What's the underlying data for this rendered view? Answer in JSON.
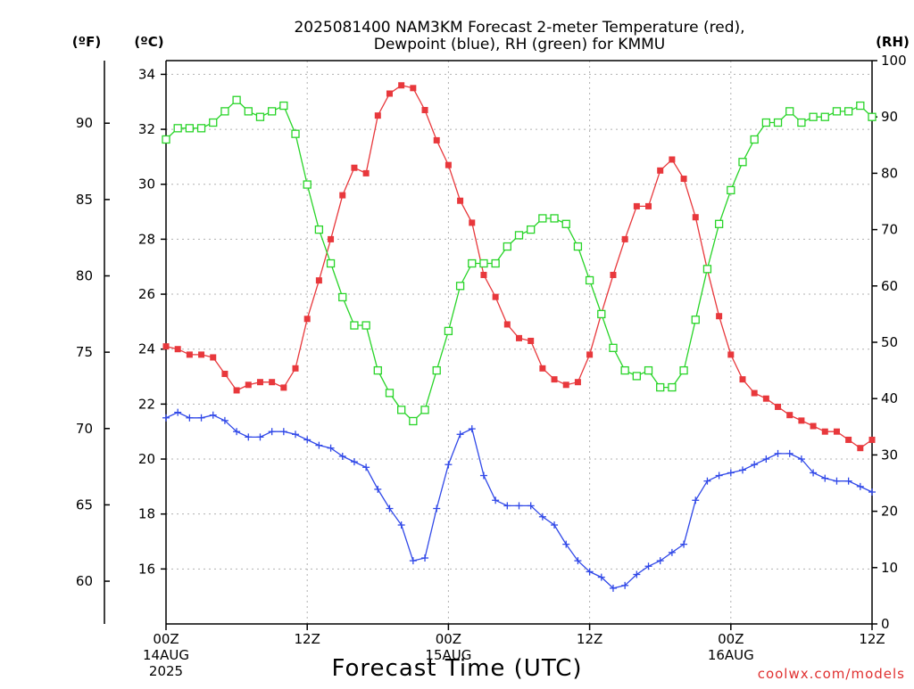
{
  "chart_data": {
    "type": "line",
    "title_lines": [
      "2025081400 NAM3KM Forecast 2-meter Temperature (red),",
      "Dewpoint (blue), RH (green) for KMMU"
    ],
    "xlabel": "Forecast Time (UTC)",
    "credit": "coolwx.com/models",
    "units": {
      "fahrenheit": "(ºF)",
      "celsius": "(ºC)",
      "rh": "(RH)"
    },
    "x_range_hours": [
      0,
      60
    ],
    "y_celsius_range": [
      14,
      34.5
    ],
    "y_rh_range": [
      0,
      100
    ],
    "celsius_ticks": [
      "16",
      "18",
      "20",
      "22",
      "24",
      "26",
      "28",
      "30",
      "32",
      "34"
    ],
    "fahrenheit_ticks": [
      "60",
      "65",
      "70",
      "75",
      "80",
      "85",
      "90"
    ],
    "rh_ticks": [
      "0",
      "10",
      "20",
      "30",
      "40",
      "50",
      "60",
      "70",
      "80",
      "90",
      "100"
    ],
    "x_ticks": [
      {
        "hour": 0,
        "label": "00Z",
        "date": "14AUG",
        "year": "2025"
      },
      {
        "hour": 12,
        "label": "12Z",
        "date": "",
        "year": ""
      },
      {
        "hour": 24,
        "label": "00Z",
        "date": "15AUG",
        "year": ""
      },
      {
        "hour": 36,
        "label": "12Z",
        "date": "",
        "year": ""
      },
      {
        "hour": 48,
        "label": "00Z",
        "date": "16AUG",
        "year": ""
      },
      {
        "hour": 60,
        "label": "12Z",
        "date": "",
        "year": ""
      }
    ],
    "grid": true,
    "series": [
      {
        "key": "temperature",
        "color": "#e8383c",
        "marker": "filled-square",
        "units": "celsius",
        "x": [
          0,
          1,
          2,
          3,
          4,
          5,
          6,
          7,
          8,
          9,
          10,
          11,
          12,
          13,
          14,
          15,
          16,
          17,
          18,
          19,
          20,
          21,
          22,
          23,
          24,
          25,
          26,
          27,
          28,
          29,
          30,
          31,
          32,
          33,
          34,
          35,
          36,
          37,
          38,
          39,
          40,
          41,
          42,
          43,
          44,
          45,
          46,
          47,
          48,
          49,
          50,
          51,
          52,
          53,
          54,
          55,
          56,
          57,
          58,
          59,
          60
        ],
        "values": [
          24.1,
          24.0,
          23.8,
          23.8,
          23.7,
          23.1,
          22.5,
          22.7,
          22.8,
          22.8,
          22.6,
          23.3,
          25.1,
          26.5,
          28.0,
          29.6,
          30.6,
          30.4,
          32.5,
          33.3,
          33.6,
          33.5,
          32.7,
          31.6,
          30.7,
          29.4,
          28.6,
          26.7,
          25.9,
          24.9,
          24.4,
          24.3,
          23.3,
          22.9,
          22.7,
          22.8,
          23.8,
          25.3,
          26.7,
          28.0,
          29.2,
          29.2,
          30.5,
          30.9,
          30.2,
          28.8,
          26.9,
          25.2,
          23.8,
          22.9,
          22.4,
          22.2,
          21.9,
          21.6,
          21.4,
          21.2,
          21.0,
          21.0,
          20.7,
          20.4,
          20.7
        ]
      },
      {
        "key": "dewpoint",
        "color": "#3048e8",
        "marker": "plus",
        "units": "celsius",
        "x": [
          0,
          1,
          2,
          3,
          4,
          5,
          6,
          7,
          8,
          9,
          10,
          11,
          12,
          13,
          14,
          15,
          16,
          17,
          18,
          19,
          20,
          21,
          22,
          23,
          24,
          25,
          26,
          27,
          28,
          29,
          30,
          31,
          32,
          33,
          34,
          35,
          36,
          37,
          38,
          39,
          40,
          41,
          42,
          43,
          44,
          45,
          46,
          47,
          48,
          49,
          50,
          51,
          52,
          53,
          54,
          55,
          56,
          57,
          58,
          59,
          60
        ],
        "values": [
          21.5,
          21.7,
          21.5,
          21.5,
          21.6,
          21.4,
          21.0,
          20.8,
          20.8,
          21.0,
          21.0,
          20.9,
          20.7,
          20.5,
          20.4,
          20.1,
          19.9,
          19.7,
          18.9,
          18.2,
          17.6,
          16.3,
          16.4,
          18.2,
          19.8,
          20.9,
          21.1,
          19.4,
          18.5,
          18.3,
          18.3,
          18.3,
          17.9,
          17.6,
          16.9,
          16.3,
          15.9,
          15.7,
          15.3,
          15.4,
          15.8,
          16.1,
          16.3,
          16.6,
          16.9,
          18.5,
          19.2,
          19.4,
          19.5,
          19.6,
          19.8,
          20.0,
          20.2,
          20.2,
          20.0,
          19.5,
          19.3,
          19.2,
          19.2,
          19.0,
          18.8
        ]
      },
      {
        "key": "rh",
        "color": "#28d428",
        "marker": "open-square",
        "units": "rh",
        "x": [
          0,
          1,
          2,
          3,
          4,
          5,
          6,
          7,
          8,
          9,
          10,
          11,
          12,
          13,
          14,
          15,
          16,
          17,
          18,
          19,
          20,
          21,
          22,
          23,
          24,
          25,
          26,
          27,
          28,
          29,
          30,
          31,
          32,
          33,
          34,
          35,
          36,
          37,
          38,
          39,
          40,
          41,
          42,
          43,
          44,
          45,
          46,
          47,
          48,
          49,
          50,
          51,
          52,
          53,
          54,
          55,
          56,
          57,
          58,
          59,
          60
        ],
        "values": [
          86,
          88,
          88,
          88,
          89,
          91,
          93,
          91,
          90,
          91,
          92,
          87,
          78,
          70,
          64,
          58,
          53,
          53,
          45,
          41,
          38,
          36,
          38,
          45,
          52,
          60,
          64,
          64,
          64,
          67,
          69,
          70,
          72,
          72,
          71,
          67,
          61,
          55,
          49,
          45,
          44,
          45,
          42,
          42,
          45,
          54,
          63,
          71,
          77,
          82,
          86,
          89,
          89,
          91,
          89,
          90,
          90,
          91,
          91,
          92,
          90
        ]
      }
    ]
  }
}
